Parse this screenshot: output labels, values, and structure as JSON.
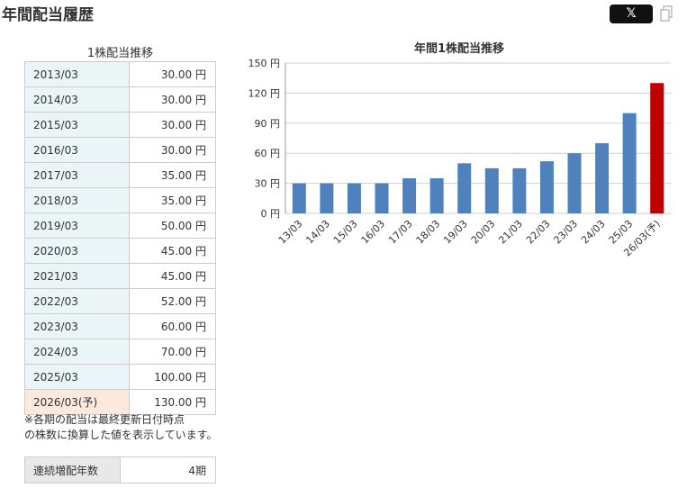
{
  "header": {
    "title": "年間配当履歴",
    "share_button_label": "𝕏"
  },
  "table": {
    "caption": "1株配当推移",
    "rows": [
      {
        "period": "2013/03",
        "value": "30.00 円"
      },
      {
        "period": "2014/03",
        "value": "30.00 円"
      },
      {
        "period": "2015/03",
        "value": "30.00 円"
      },
      {
        "period": "2016/03",
        "value": "30.00 円"
      },
      {
        "period": "2017/03",
        "value": "35.00 円"
      },
      {
        "period": "2018/03",
        "value": "35.00 円"
      },
      {
        "period": "2019/03",
        "value": "50.00 円"
      },
      {
        "period": "2020/03",
        "value": "45.00 円"
      },
      {
        "period": "2021/03",
        "value": "45.00 円"
      },
      {
        "period": "2022/03",
        "value": "52.00 円"
      },
      {
        "period": "2023/03",
        "value": "60.00 円"
      },
      {
        "period": "2024/03",
        "value": "70.00 円"
      },
      {
        "period": "2025/03",
        "value": "100.00 円"
      },
      {
        "period": "2026/03(予)",
        "value": "130.00 円",
        "forecast": true
      }
    ]
  },
  "note": {
    "line1": "※各期の配当は最終更新日付時点",
    "line2": "の株数に換算した値を表示しています。"
  },
  "streak": {
    "label": "連続増配年数",
    "value": "4期"
  },
  "colors": {
    "bar": "#4f81bd",
    "forecast_bar": "#c00000",
    "period_bg": "#eaf5f7",
    "forecast_bg": "#fde9dc"
  },
  "chart_data": {
    "type": "bar",
    "title": "年間1株配当推移",
    "categories": [
      "13/03",
      "14/03",
      "15/03",
      "16/03",
      "17/03",
      "18/03",
      "19/03",
      "20/03",
      "21/03",
      "22/03",
      "23/03",
      "24/03",
      "25/03",
      "26/03(予)"
    ],
    "values": [
      30,
      30,
      30,
      30,
      35,
      35,
      50,
      45,
      45,
      52,
      60,
      70,
      100,
      130
    ],
    "forecast_index": 13,
    "ylim": [
      0,
      150
    ],
    "yticks": [
      0,
      30,
      60,
      90,
      120,
      150
    ],
    "yunit": "円",
    "grid": true
  }
}
